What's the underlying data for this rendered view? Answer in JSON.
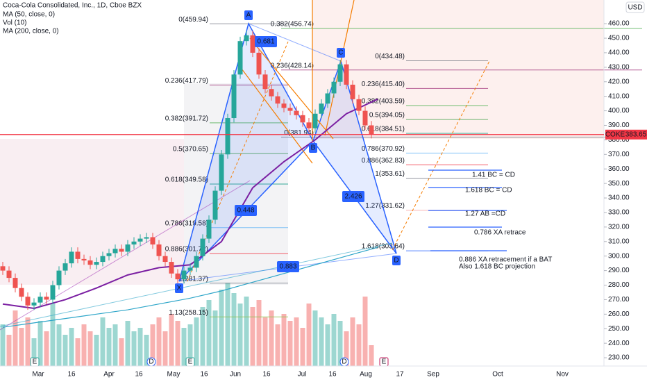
{
  "header": {
    "title": "Coca-Cola Consolidated, Inc., 1D, Cboe BZX",
    "indicators": [
      "MA (50, close, 0)",
      "Vol (10)",
      "MA (200, close, 0)"
    ]
  },
  "currency": "USD",
  "price_tag": {
    "symbol": "COKE",
    "label": "383.65",
    "price": 383.65
  },
  "chart_data": {
    "type": "candlestick",
    "ylim": [
      224.3,
      476.3
    ],
    "yticks": [
      {
        "value": 230,
        "label": "230.00"
      },
      {
        "value": 240,
        "label": "240.00"
      },
      {
        "value": 250,
        "label": "250.00"
      },
      {
        "value": 260,
        "label": "260.00"
      },
      {
        "value": 270,
        "label": "270.00"
      },
      {
        "value": 280,
        "label": "280.00"
      },
      {
        "value": 290,
        "label": "290.00"
      },
      {
        "value": 300,
        "label": "300.00"
      },
      {
        "value": 310,
        "label": "310.00"
      },
      {
        "value": 320,
        "label": "320.00"
      },
      {
        "value": 330,
        "label": "330.00"
      },
      {
        "value": 340,
        "label": "340.00"
      },
      {
        "value": 350,
        "label": "350.00"
      },
      {
        "value": 360,
        "label": "360.00"
      },
      {
        "value": 370,
        "label": "370.00"
      },
      {
        "value": 380,
        "label": "380.00"
      },
      {
        "value": 390,
        "label": "390.00"
      },
      {
        "value": 400,
        "label": "400.00"
      },
      {
        "value": 410,
        "label": "410.00"
      },
      {
        "value": 420,
        "label": "420.00"
      },
      {
        "value": 430,
        "label": "430.00"
      },
      {
        "value": 440,
        "label": "440.00"
      },
      {
        "value": 450,
        "label": "450.00"
      },
      {
        "value": 460,
        "label": "460.00"
      }
    ],
    "x_labels": [
      "Mar",
      "16",
      "Apr",
      "16",
      "May",
      "16",
      "Jun",
      "16",
      "Jul",
      "16",
      "Aug",
      "17",
      "Sep",
      "Oct",
      "Nov"
    ],
    "closes": [
      290,
      285,
      278,
      272,
      266,
      268,
      272,
      270,
      280,
      290,
      295,
      303,
      298,
      297,
      294,
      296,
      300,
      302,
      305,
      303,
      308,
      310,
      312,
      313,
      308,
      300,
      296,
      288,
      284,
      290,
      292,
      300,
      312,
      325,
      345,
      370,
      395,
      425,
      448,
      452,
      440,
      425,
      415,
      410,
      405,
      402,
      400,
      397,
      392,
      388,
      398,
      405,
      412,
      420,
      432,
      418,
      408,
      400,
      390,
      384
    ],
    "volume": [
      60,
      45,
      80,
      55,
      70,
      40,
      65,
      50,
      90,
      60,
      45,
      55,
      40,
      60,
      50,
      45,
      70,
      55,
      60,
      40,
      65,
      50,
      55,
      45,
      60,
      70,
      50,
      75,
      65,
      55,
      60,
      70,
      85,
      95,
      80,
      110,
      120,
      105,
      90,
      100,
      85,
      95,
      70,
      80,
      60,
      75,
      65,
      70,
      55,
      90,
      80,
      70,
      60,
      75,
      65,
      50,
      70,
      60,
      100,
      30
    ],
    "up_color": "#26a69a",
    "down_color": "#ef5350",
    "ma50": {
      "color": "#7b1fa2",
      "values": [
        267,
        264,
        270,
        278,
        287,
        292,
        294,
        310,
        347,
        365,
        380,
        398,
        408
      ]
    },
    "ma200": {
      "color": "#2ea6c9",
      "values": [
        251,
        254,
        257,
        260,
        263,
        267,
        271,
        276,
        282,
        288,
        294,
        300,
        306
      ]
    }
  },
  "fib_xa": [
    {
      "label": "0(459.94)",
      "price": 459.94,
      "color": "#787b86"
    },
    {
      "label": "0.236(417.79)",
      "price": 417.79,
      "color": "#a0327a"
    },
    {
      "label": "0.382(391.72)",
      "price": 391.72,
      "color": "#4caf50"
    },
    {
      "label": "0.5(370.65)",
      "price": 370.65,
      "color": "#43a047"
    },
    {
      "label": "0.618(349.58)",
      "price": 349.58,
      "color": "#089981"
    },
    {
      "label": "0.786(319.58)",
      "price": 319.58,
      "color": "#64b5f6"
    },
    {
      "label": "0.886(301.72)",
      "price": 301.72,
      "color": "#f23645"
    },
    {
      "label": "1(281.37)",
      "price": 281.37,
      "color": "#787b86"
    },
    {
      "label": "1.13(258.15)",
      "price": 258.15,
      "color": "#8bc34a"
    }
  ],
  "fib_ab": [
    {
      "label": "0.382(456.74)",
      "price": 456.74,
      "color": "#4caf50"
    },
    {
      "label": "0.236(428.14)",
      "price": 428.14,
      "color": "#a0327a"
    },
    {
      "label": "0(381.94)",
      "price": 381.94,
      "color": "#787b86"
    }
  ],
  "fib_cd": [
    {
      "label": "0(434.48)",
      "price": 434.48,
      "color": "#787b86"
    },
    {
      "label": "0.236(415.40)",
      "price": 415.4,
      "color": "#a0327a"
    },
    {
      "label": "0.382(403.59)",
      "price": 403.59,
      "color": "#4caf50"
    },
    {
      "label": "0.5(394.05)",
      "price": 394.05,
      "color": "#43a047"
    },
    {
      "label": "0.618(384.51)",
      "price": 384.51,
      "color": "#089981"
    },
    {
      "label": "0.786(370.92)",
      "price": 370.92,
      "color": "#64b5f6"
    },
    {
      "label": "0.886(362.83)",
      "price": 362.83,
      "color": "#f23645"
    },
    {
      "label": "1(353.61)",
      "price": 353.61,
      "color": "#787b86"
    },
    {
      "label": "1.27(331.62)",
      "price": 331.62,
      "color": "#f8a0a0"
    },
    {
      "label": "1.618(303.64)",
      "price": 303.64,
      "color": "#2962ff"
    }
  ],
  "pattern_points": [
    "X",
    "A",
    "B",
    "C",
    "D"
  ],
  "ratios": [
    "0.681",
    "0.448",
    "2.426",
    "0.883"
  ],
  "notes": [
    "1.41 BC = CD",
    "1.618 BC = CD",
    "1.27 AB =CD",
    "0.786 XA retrace",
    "0.886 XA retracement if a BAT",
    "Also 1.618 BC projection"
  ],
  "events": [
    "E",
    "D",
    "E",
    "D",
    "E"
  ]
}
